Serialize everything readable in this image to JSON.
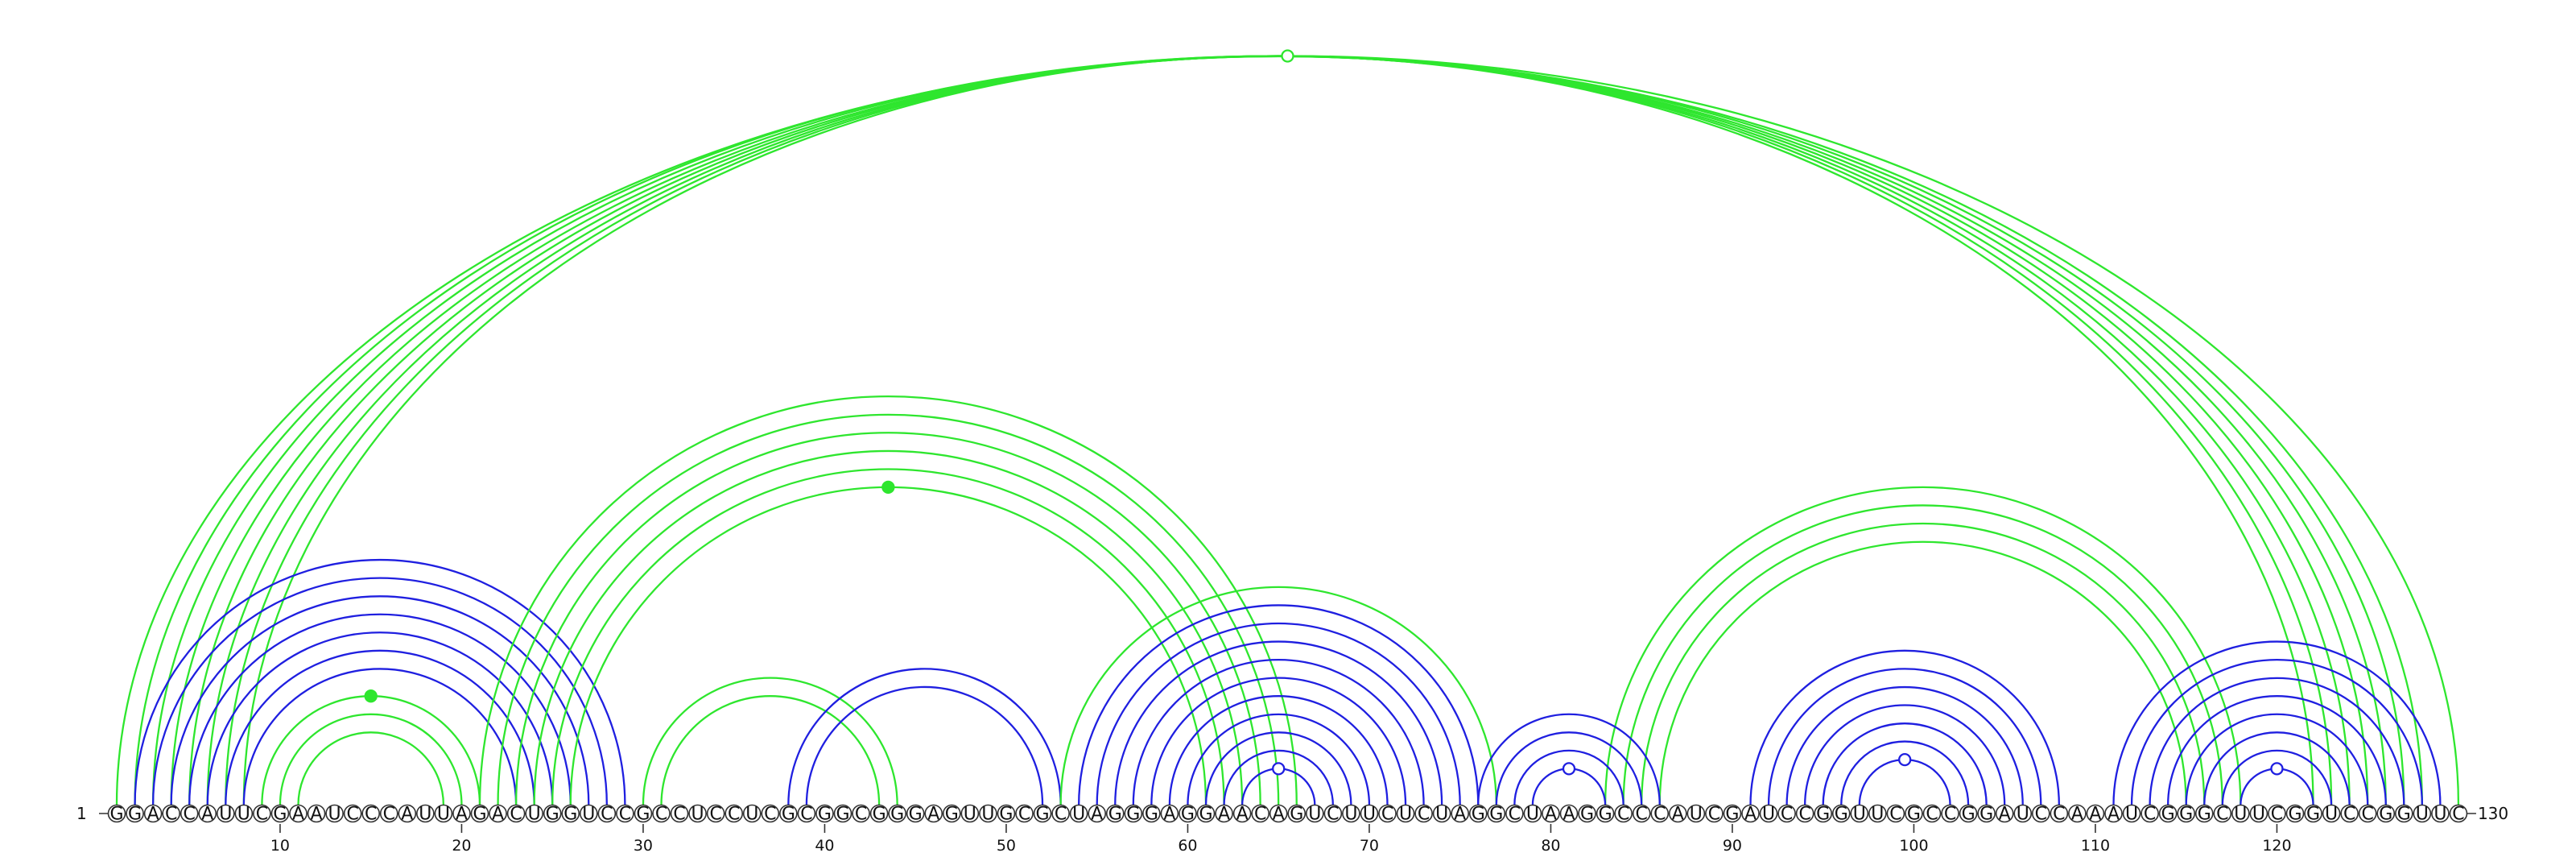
{
  "sequence": "GGACCAUUCGAAUCCCAUUAGACUGGUCCGCCUCCUCGCGGCGGGAGUUGCGCUAGGGAGGAACAGUCUUCUCUAGGCUAAGGCCCAUCGAUCCGGUUCGCCGGAUCCAAAUCGGGCUUCGGUCCGGUUC",
  "start_label": "1",
  "end_label": "130",
  "ticks": [
    "10",
    "20",
    "30",
    "40",
    "50",
    "60",
    "70",
    "80",
    "90",
    "100",
    "110",
    "120"
  ],
  "colors": {
    "green": "#2ee62e",
    "blue": "#1f1fe0",
    "nt_stroke": "#333333"
  },
  "arc_groups": [
    {
      "color": "green",
      "pairs": [
        [
          1,
          130
        ],
        [
          2,
          128
        ],
        [
          3,
          127
        ],
        [
          4,
          126
        ],
        [
          5,
          125
        ],
        [
          6,
          124
        ],
        [
          7,
          123
        ],
        [
          8,
          122
        ]
      ],
      "marker": {
        "inner_pair": 8,
        "outer_pair": 1,
        "style": "open",
        "position": "top"
      }
    },
    {
      "color": "blue",
      "pairs": [
        [
          2,
          29
        ],
        [
          3,
          28
        ],
        [
          4,
          27
        ],
        [
          5,
          26
        ],
        [
          6,
          25
        ],
        [
          7,
          24
        ],
        [
          8,
          23
        ]
      ],
      "marker": null
    },
    {
      "color": "green",
      "pairs": [
        [
          9,
          21
        ],
        [
          10,
          20
        ],
        [
          11,
          19
        ]
      ],
      "marker": {
        "pair": [
          9,
          21
        ],
        "style": "filled"
      }
    },
    {
      "color": "green",
      "pairs": [
        [
          21,
          66
        ],
        [
          22,
          65
        ],
        [
          23,
          64
        ],
        [
          24,
          63
        ],
        [
          25,
          62
        ],
        [
          26,
          61
        ]
      ],
      "marker": {
        "pair": [
          26,
          61
        ],
        "style": "filled"
      }
    },
    {
      "color": "green",
      "pairs": [
        [
          30,
          44
        ],
        [
          31,
          43
        ]
      ],
      "marker": null
    },
    {
      "color": "blue",
      "pairs": [
        [
          38,
          53
        ],
        [
          39,
          52
        ]
      ],
      "marker": null
    },
    {
      "color": "green",
      "pairs": [
        [
          53,
          77
        ]
      ],
      "marker": null
    },
    {
      "color": "blue",
      "pairs": [
        [
          54,
          76
        ],
        [
          55,
          75
        ],
        [
          56,
          74
        ],
        [
          57,
          73
        ],
        [
          58,
          72
        ],
        [
          59,
          71
        ],
        [
          60,
          70
        ],
        [
          61,
          69
        ],
        [
          62,
          68
        ],
        [
          63,
          67
        ]
      ],
      "marker": {
        "pair": [
          63,
          67
        ],
        "style": "open"
      }
    },
    {
      "color": "green",
      "pairs": [
        [
          83,
          118
        ],
        [
          84,
          117
        ],
        [
          85,
          116
        ],
        [
          86,
          115
        ]
      ],
      "marker": null
    },
    {
      "color": "blue",
      "pairs": [
        [
          76,
          86
        ],
        [
          77,
          85
        ],
        [
          78,
          84
        ],
        [
          79,
          83
        ]
      ],
      "marker": {
        "pair": [
          79,
          83
        ],
        "style": "open"
      }
    },
    {
      "color": "blue",
      "pairs": [
        [
          91,
          108
        ],
        [
          92,
          107
        ],
        [
          93,
          106
        ],
        [
          94,
          105
        ],
        [
          95,
          104
        ],
        [
          96,
          103
        ],
        [
          97,
          102
        ]
      ],
      "marker": {
        "pair": [
          97,
          102
        ],
        "style": "open"
      }
    },
    {
      "color": "blue",
      "pairs": [
        [
          111,
          129
        ],
        [
          112,
          128
        ],
        [
          113,
          127
        ],
        [
          114,
          126
        ],
        [
          115,
          125
        ],
        [
          116,
          124
        ],
        [
          117,
          123
        ],
        [
          118,
          122
        ]
      ],
      "marker": {
        "pair": [
          118,
          122
        ],
        "style": "open"
      }
    }
  ]
}
